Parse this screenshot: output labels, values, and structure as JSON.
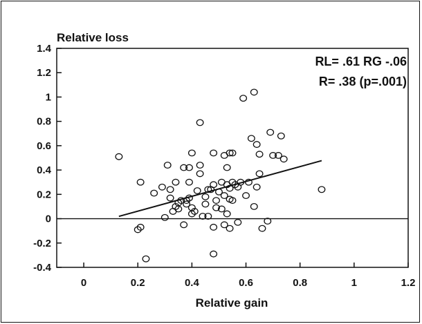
{
  "chart_data": {
    "type": "scatter",
    "title": "",
    "ylabel": "Relative loss",
    "xlabel": "Relative gain",
    "xlim": [
      -0.1,
      1.2
    ],
    "ylim": [
      -0.4,
      1.4
    ],
    "x_ticks": [
      0,
      0.2,
      0.4,
      0.6,
      0.8,
      1,
      1.2
    ],
    "x_tick_labels": [
      "0",
      "0.2",
      "0.4",
      "0.6",
      "0.8",
      "1",
      "1.2"
    ],
    "y_ticks": [
      1.4,
      1.2,
      1,
      0.8,
      0.6,
      0.4,
      0.2,
      0,
      -0.2,
      -0.4
    ],
    "y_tick_labels": [
      "1.4",
      "1.2",
      "1",
      "0.8",
      "0.6",
      "0.4",
      "0.2",
      "0",
      "-0.2",
      "-0.4"
    ],
    "grid": false,
    "zero_line": true,
    "annotations": [
      "RL= .61 RG -.06",
      "R= .38 (p=.001)"
    ],
    "regression_line": {
      "slope": 0.61,
      "intercept": -0.06,
      "x_range": [
        0.13,
        0.88
      ]
    },
    "points": [
      [
        0.13,
        0.51
      ],
      [
        0.2,
        -0.09
      ],
      [
        0.21,
        -0.07
      ],
      [
        0.21,
        0.3
      ],
      [
        0.23,
        -0.33
      ],
      [
        0.26,
        0.21
      ],
      [
        0.29,
        0.26
      ],
      [
        0.3,
        0.01
      ],
      [
        0.31,
        0.44
      ],
      [
        0.32,
        0.17
      ],
      [
        0.32,
        0.24
      ],
      [
        0.33,
        0.06
      ],
      [
        0.34,
        0.1
      ],
      [
        0.34,
        0.3
      ],
      [
        0.35,
        0.08
      ],
      [
        0.35,
        0.13
      ],
      [
        0.36,
        0.15
      ],
      [
        0.37,
        -0.05
      ],
      [
        0.37,
        0.42
      ],
      [
        0.38,
        0.12
      ],
      [
        0.38,
        0.15
      ],
      [
        0.39,
        0.42
      ],
      [
        0.39,
        0.17
      ],
      [
        0.39,
        0.3
      ],
      [
        0.4,
        0.04
      ],
      [
        0.4,
        0.09
      ],
      [
        0.4,
        0.54
      ],
      [
        0.41,
        0.06
      ],
      [
        0.42,
        0.23
      ],
      [
        0.43,
        0.79
      ],
      [
        0.43,
        0.44
      ],
      [
        0.43,
        0.37
      ],
      [
        0.44,
        0.02
      ],
      [
        0.45,
        0.12
      ],
      [
        0.45,
        0.18
      ],
      [
        0.46,
        0.24
      ],
      [
        0.46,
        0.02
      ],
      [
        0.47,
        0.24
      ],
      [
        0.48,
        -0.07
      ],
      [
        0.48,
        -0.29
      ],
      [
        0.48,
        0.54
      ],
      [
        0.48,
        0.28
      ],
      [
        0.49,
        0.15
      ],
      [
        0.49,
        0.09
      ],
      [
        0.5,
        0.22
      ],
      [
        0.51,
        0.3
      ],
      [
        0.51,
        0.08
      ],
      [
        0.52,
        0.52
      ],
      [
        0.52,
        0.19
      ],
      [
        0.52,
        -0.05
      ],
      [
        0.53,
        0.28
      ],
      [
        0.53,
        0.04
      ],
      [
        0.53,
        0.42
      ],
      [
        0.54,
        0.54
      ],
      [
        0.54,
        0.25
      ],
      [
        0.54,
        0.16
      ],
      [
        0.54,
        -0.08
      ],
      [
        0.55,
        0.54
      ],
      [
        0.55,
        0.3
      ],
      [
        0.55,
        0.15
      ],
      [
        0.56,
        0.28
      ],
      [
        0.57,
        0.26
      ],
      [
        0.57,
        -0.03
      ],
      [
        0.58,
        0.3
      ],
      [
        0.59,
        0.99
      ],
      [
        0.6,
        0.19
      ],
      [
        0.61,
        0.3
      ],
      [
        0.62,
        0.66
      ],
      [
        0.63,
        1.04
      ],
      [
        0.63,
        0.1
      ],
      [
        0.64,
        0.26
      ],
      [
        0.64,
        0.61
      ],
      [
        0.65,
        0.53
      ],
      [
        0.65,
        0.37
      ],
      [
        0.66,
        -0.08
      ],
      [
        0.68,
        -0.02
      ],
      [
        0.69,
        0.71
      ],
      [
        0.7,
        0.52
      ],
      [
        0.72,
        0.52
      ],
      [
        0.73,
        0.68
      ],
      [
        0.74,
        0.49
      ],
      [
        0.88,
        0.24
      ]
    ]
  }
}
